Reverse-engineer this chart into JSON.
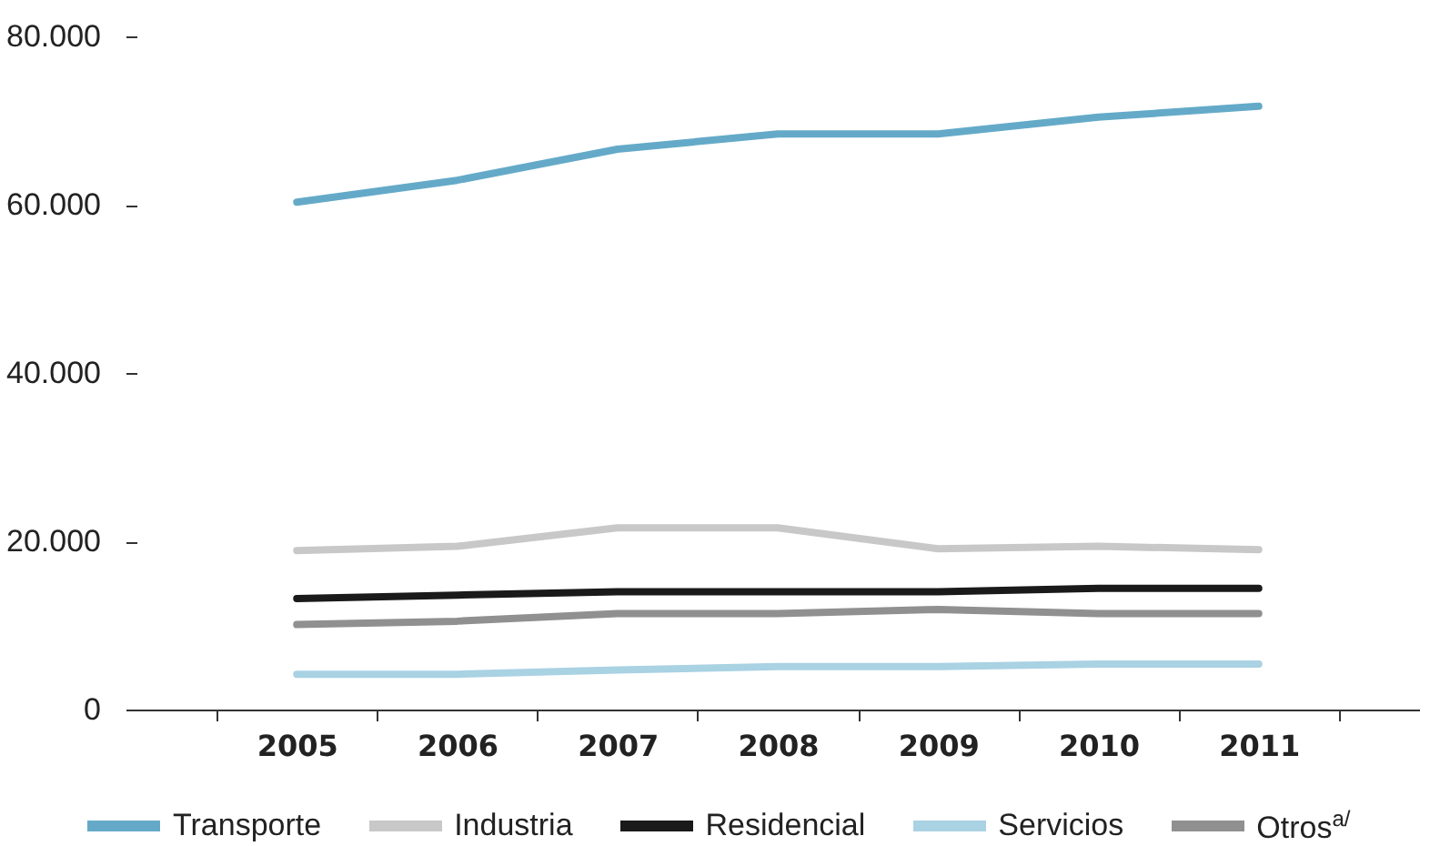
{
  "chart_data": {
    "type": "line",
    "categories": [
      "2005",
      "2006",
      "2007",
      "2008",
      "2009",
      "2010",
      "2011"
    ],
    "series": [
      {
        "name": "Transporte",
        "color": "#64aac8",
        "values": [
          60300,
          62900,
          66600,
          68400,
          68400,
          70400,
          71700
        ]
      },
      {
        "name": "Industria",
        "color": "#c8c8c8",
        "values": [
          18900,
          19400,
          21600,
          21600,
          19100,
          19400,
          19000
        ]
      },
      {
        "name": "Residencial",
        "color": "#1a1a1a",
        "values": [
          13200,
          13600,
          14000,
          14000,
          14000,
          14400,
          14400
        ]
      },
      {
        "name": "Servicios",
        "color": "#a9d2e3",
        "values": [
          4200,
          4200,
          4700,
          5100,
          5100,
          5400,
          5400
        ]
      },
      {
        "name": "Otros$^{a/}$",
        "color": "#909090",
        "values": [
          10100,
          10500,
          11400,
          11400,
          11900,
          11400,
          11400
        ]
      }
    ],
    "ylim": [
      0,
      80000
    ],
    "yticks": [
      0,
      {
        "value": 20000,
        "label": "20.000"
      },
      {
        "value": 40000,
        "label": "40.000"
      },
      {
        "value": 60000,
        "label": "60.000"
      },
      {
        "value": 80000,
        "label": "80.000"
      }
    ],
    "grid": false,
    "legend": "bottom",
    "marker": "none",
    "line_style": "solid"
  }
}
